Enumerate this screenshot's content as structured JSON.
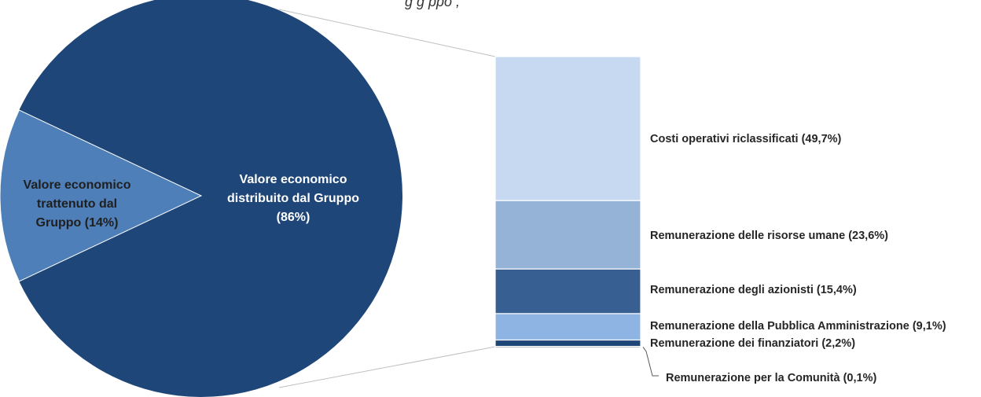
{
  "header": {
    "title_fragment": "g                                              g ppo           ,"
  },
  "chart_data": {
    "type": "pie",
    "pie": {
      "slices": [
        {
          "label": [
            "Valore economico",
            "distribuito dal Gruppo",
            "(86%)"
          ],
          "value": 86,
          "color": "#1f4678",
          "text_color": "#ffffff"
        },
        {
          "label": [
            "Valore economico",
            "trattenuto dal",
            "Gruppo (14%)"
          ],
          "value": 14,
          "color": "#4f7fb8",
          "text_color": "#1f1f1f"
        }
      ]
    },
    "breakdown": {
      "type": "bar",
      "parent_slice": "Valore economico distribuito dal Gruppo (86%)",
      "segments": [
        {
          "label": "Costi operativi riclassificati (49,7%)",
          "value": 49.7,
          "color": "#c6d9f0"
        },
        {
          "label": "Remunerazione delle risorse umane (23,6%)",
          "value": 23.6,
          "color": "#95b3d7"
        },
        {
          "label": "Remunerazione degli azionisti (15,4%)",
          "value": 15.4,
          "color": "#375f92"
        },
        {
          "label": "Remunerazione della Pubblica Amministrazione (9,1%)",
          "value": 9.1,
          "color": "#8db4e2"
        },
        {
          "label": "Remunerazione dei finanziatori (2,2%)",
          "value": 2.2,
          "color": "#1f4678"
        },
        {
          "label": "Remunerazione per la Comunità (0,1%)",
          "value": 0.1,
          "color": "#17365d"
        }
      ]
    }
  }
}
